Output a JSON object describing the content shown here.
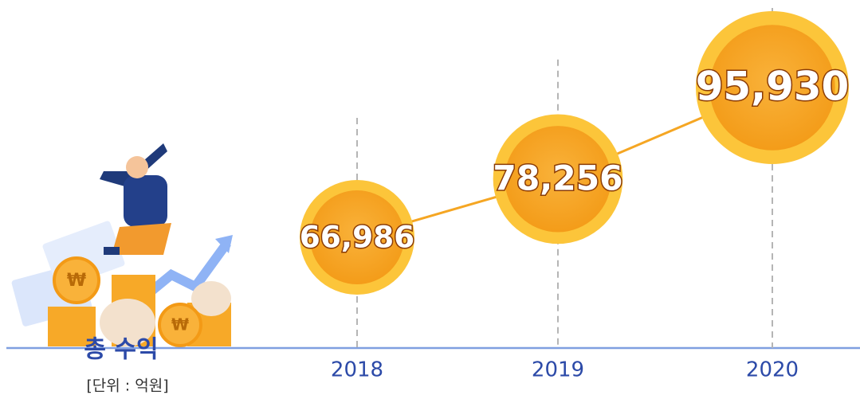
{
  "chart_data": {
    "type": "line",
    "title": "총 수익",
    "subtitle": "[단위 : 억원]",
    "categories": [
      "2018",
      "2019",
      "2020"
    ],
    "values": [
      66986,
      78256,
      95930
    ],
    "value_labels": [
      "66,986",
      "78,256",
      "95,930"
    ],
    "color": "#f5a623"
  }
}
